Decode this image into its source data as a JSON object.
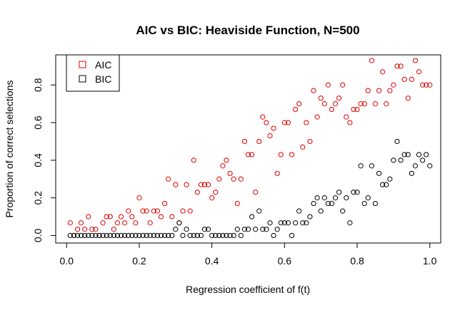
{
  "chart_data": {
    "type": "scatter",
    "title": "AIC vs BIC: Heaviside Function, N=500",
    "xlabel": "Regression coefficient of f(t)",
    "ylabel": "Proportion of correct selections",
    "xlim": [
      -0.03,
      1.03
    ],
    "ylim": [
      -0.04,
      0.96
    ],
    "xticks": [
      0.0,
      0.2,
      0.4,
      0.6,
      0.8,
      1.0
    ],
    "xtick_labels": [
      "0.0",
      "0.2",
      "0.4",
      "0.6",
      "0.8",
      "1.0"
    ],
    "yticks": [
      0.0,
      0.2,
      0.4,
      0.6,
      0.8
    ],
    "ytick_labels": [
      "0.0",
      "0.2",
      "0.4",
      "0.6",
      "0.8"
    ],
    "grid": false,
    "legend_position": "top-left",
    "marker": "open-circle",
    "series": [
      {
        "name": "AIC",
        "color": "#dd0000",
        "x": [
          0.01,
          0.02,
          0.03,
          0.04,
          0.05,
          0.06,
          0.07,
          0.08,
          0.09,
          0.1,
          0.11,
          0.12,
          0.13,
          0.14,
          0.15,
          0.16,
          0.17,
          0.18,
          0.19,
          0.2,
          0.21,
          0.22,
          0.23,
          0.24,
          0.25,
          0.26,
          0.27,
          0.28,
          0.29,
          0.3,
          0.31,
          0.32,
          0.33,
          0.34,
          0.35,
          0.36,
          0.37,
          0.38,
          0.39,
          0.4,
          0.41,
          0.42,
          0.43,
          0.44,
          0.45,
          0.46,
          0.47,
          0.48,
          0.49,
          0.5,
          0.51,
          0.52,
          0.53,
          0.54,
          0.55,
          0.56,
          0.57,
          0.58,
          0.59,
          0.6,
          0.61,
          0.62,
          0.63,
          0.64,
          0.65,
          0.66,
          0.67,
          0.68,
          0.69,
          0.7,
          0.71,
          0.72,
          0.73,
          0.74,
          0.75,
          0.76,
          0.77,
          0.78,
          0.79,
          0.8,
          0.81,
          0.82,
          0.83,
          0.84,
          0.85,
          0.86,
          0.87,
          0.88,
          0.89,
          0.9,
          0.91,
          0.92,
          0.93,
          0.94,
          0.95,
          0.96,
          0.97,
          0.98,
          0.99,
          1.0
        ],
        "y": [
          0.067,
          0.0,
          0.033,
          0.067,
          0.033,
          0.1,
          0.033,
          0.033,
          0.0,
          0.067,
          0.1,
          0.1,
          0.033,
          0.067,
          0.1,
          0.067,
          0.13,
          0.1,
          0.067,
          0.2,
          0.13,
          0.13,
          0.067,
          0.13,
          0.13,
          0.1,
          0.17,
          0.3,
          0.1,
          0.27,
          0.067,
          0.13,
          0.27,
          0.13,
          0.4,
          0.23,
          0.27,
          0.27,
          0.27,
          0.2,
          0.23,
          0.3,
          0.37,
          0.4,
          0.33,
          0.3,
          0.17,
          0.3,
          0.5,
          0.43,
          0.43,
          0.23,
          0.5,
          0.63,
          0.6,
          0.53,
          0.57,
          0.33,
          0.43,
          0.6,
          0.6,
          0.43,
          0.67,
          0.7,
          0.47,
          0.6,
          0.5,
          0.77,
          0.63,
          0.73,
          0.7,
          0.8,
          0.67,
          0.7,
          0.73,
          0.8,
          0.63,
          0.6,
          0.67,
          0.67,
          0.7,
          0.7,
          0.77,
          0.93,
          0.7,
          0.77,
          0.87,
          0.7,
          0.77,
          0.8,
          0.9,
          0.9,
          0.83,
          0.73,
          0.83,
          0.93,
          0.87,
          0.8,
          0.8,
          0.8
        ]
      },
      {
        "name": "BIC",
        "color": "#000000",
        "x": [
          0.01,
          0.02,
          0.03,
          0.04,
          0.05,
          0.06,
          0.07,
          0.08,
          0.09,
          0.1,
          0.11,
          0.12,
          0.13,
          0.14,
          0.15,
          0.16,
          0.17,
          0.18,
          0.19,
          0.2,
          0.21,
          0.22,
          0.23,
          0.24,
          0.25,
          0.26,
          0.27,
          0.28,
          0.29,
          0.3,
          0.31,
          0.32,
          0.33,
          0.34,
          0.35,
          0.36,
          0.37,
          0.38,
          0.39,
          0.4,
          0.41,
          0.42,
          0.43,
          0.44,
          0.45,
          0.46,
          0.47,
          0.48,
          0.49,
          0.5,
          0.51,
          0.52,
          0.53,
          0.54,
          0.55,
          0.56,
          0.57,
          0.58,
          0.59,
          0.6,
          0.61,
          0.62,
          0.63,
          0.64,
          0.65,
          0.66,
          0.67,
          0.68,
          0.69,
          0.7,
          0.71,
          0.72,
          0.73,
          0.74,
          0.75,
          0.76,
          0.77,
          0.78,
          0.79,
          0.8,
          0.81,
          0.82,
          0.83,
          0.84,
          0.85,
          0.86,
          0.87,
          0.88,
          0.89,
          0.9,
          0.91,
          0.92,
          0.93,
          0.94,
          0.95,
          0.96,
          0.97,
          0.98,
          0.99,
          1.0
        ],
        "y": [
          0.0,
          0.0,
          0.0,
          0.0,
          0.0,
          0.0,
          0.0,
          0.0,
          0.0,
          0.0,
          0.0,
          0.0,
          0.0,
          0.0,
          0.0,
          0.0,
          0.0,
          0.0,
          0.0,
          0.0,
          0.0,
          0.0,
          0.0,
          0.0,
          0.0,
          0.0,
          0.0,
          0.0,
          0.0,
          0.033,
          0.067,
          0.0,
          0.033,
          0.0,
          0.0,
          0.0,
          0.0,
          0.033,
          0.033,
          0.0,
          0.0,
          0.0,
          0.0,
          0.0,
          0.0,
          0.0,
          0.033,
          0.0,
          0.033,
          0.033,
          0.1,
          0.033,
          0.13,
          0.033,
          0.033,
          0.067,
          0.0,
          0.033,
          0.067,
          0.067,
          0.067,
          0.0,
          0.067,
          0.13,
          0.067,
          0.067,
          0.1,
          0.17,
          0.2,
          0.13,
          0.2,
          0.17,
          0.17,
          0.2,
          0.23,
          0.13,
          0.2,
          0.067,
          0.23,
          0.23,
          0.37,
          0.17,
          0.2,
          0.37,
          0.17,
          0.33,
          0.27,
          0.27,
          0.3,
          0.4,
          0.5,
          0.4,
          0.43,
          0.43,
          0.33,
          0.37,
          0.43,
          0.4,
          0.43,
          0.37
        ]
      }
    ]
  }
}
